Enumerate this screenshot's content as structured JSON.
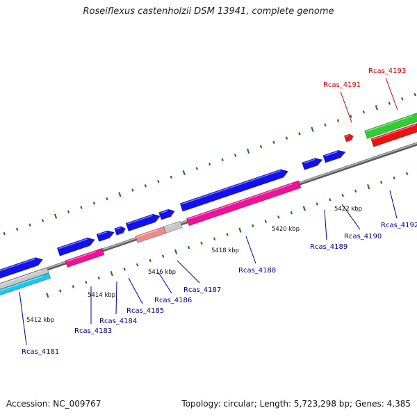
{
  "title": "Roseiflexus castenholzii DSM 13941, complete genome",
  "footer": {
    "accession": "Accession: NC_009767",
    "summary": "Topology: circular; Length: 5,723,298 bp; Genes: 4,385"
  },
  "colors": {
    "backbone": "#8a8a8a",
    "tick": "#1f7a1f",
    "cds": "#1111ee",
    "rna": "#ee1199",
    "pseudo": "#c8c8c8",
    "cds_cyan": "#18c8ee",
    "salmon": "#f08a8a",
    "green_gene": "#33cc33",
    "red_gene": "#ee1111",
    "label_blue": "#00008b",
    "label_red": "#cc0000"
  },
  "scale_labels": [
    {
      "text": "5412 kbp"
    },
    {
      "text": "5414 kbp"
    },
    {
      "text": "5416 kbp"
    },
    {
      "text": "5418 kbp"
    },
    {
      "text": "5420 kbp"
    },
    {
      "text": "5422 kbp"
    }
  ],
  "gene_labels": [
    {
      "text": "Rcas_4181",
      "color": "label_blue"
    },
    {
      "text": "Rcas_4183",
      "color": "label_blue"
    },
    {
      "text": "Rcas_4184",
      "color": "label_blue"
    },
    {
      "text": "Rcas_4185",
      "color": "label_blue"
    },
    {
      "text": "Rcas_4186",
      "color": "label_blue"
    },
    {
      "text": "Rcas_4187",
      "color": "label_blue"
    },
    {
      "text": "Rcas_4188",
      "color": "label_blue"
    },
    {
      "text": "Rcas_4189",
      "color": "label_blue"
    },
    {
      "text": "Rcas_4190",
      "color": "label_blue"
    },
    {
      "text": "Rcas_4192",
      "color": "label_blue"
    },
    {
      "text": "Rcas_4191",
      "color": "label_red"
    },
    {
      "text": "Rcas_4193",
      "color": "label_red"
    }
  ]
}
